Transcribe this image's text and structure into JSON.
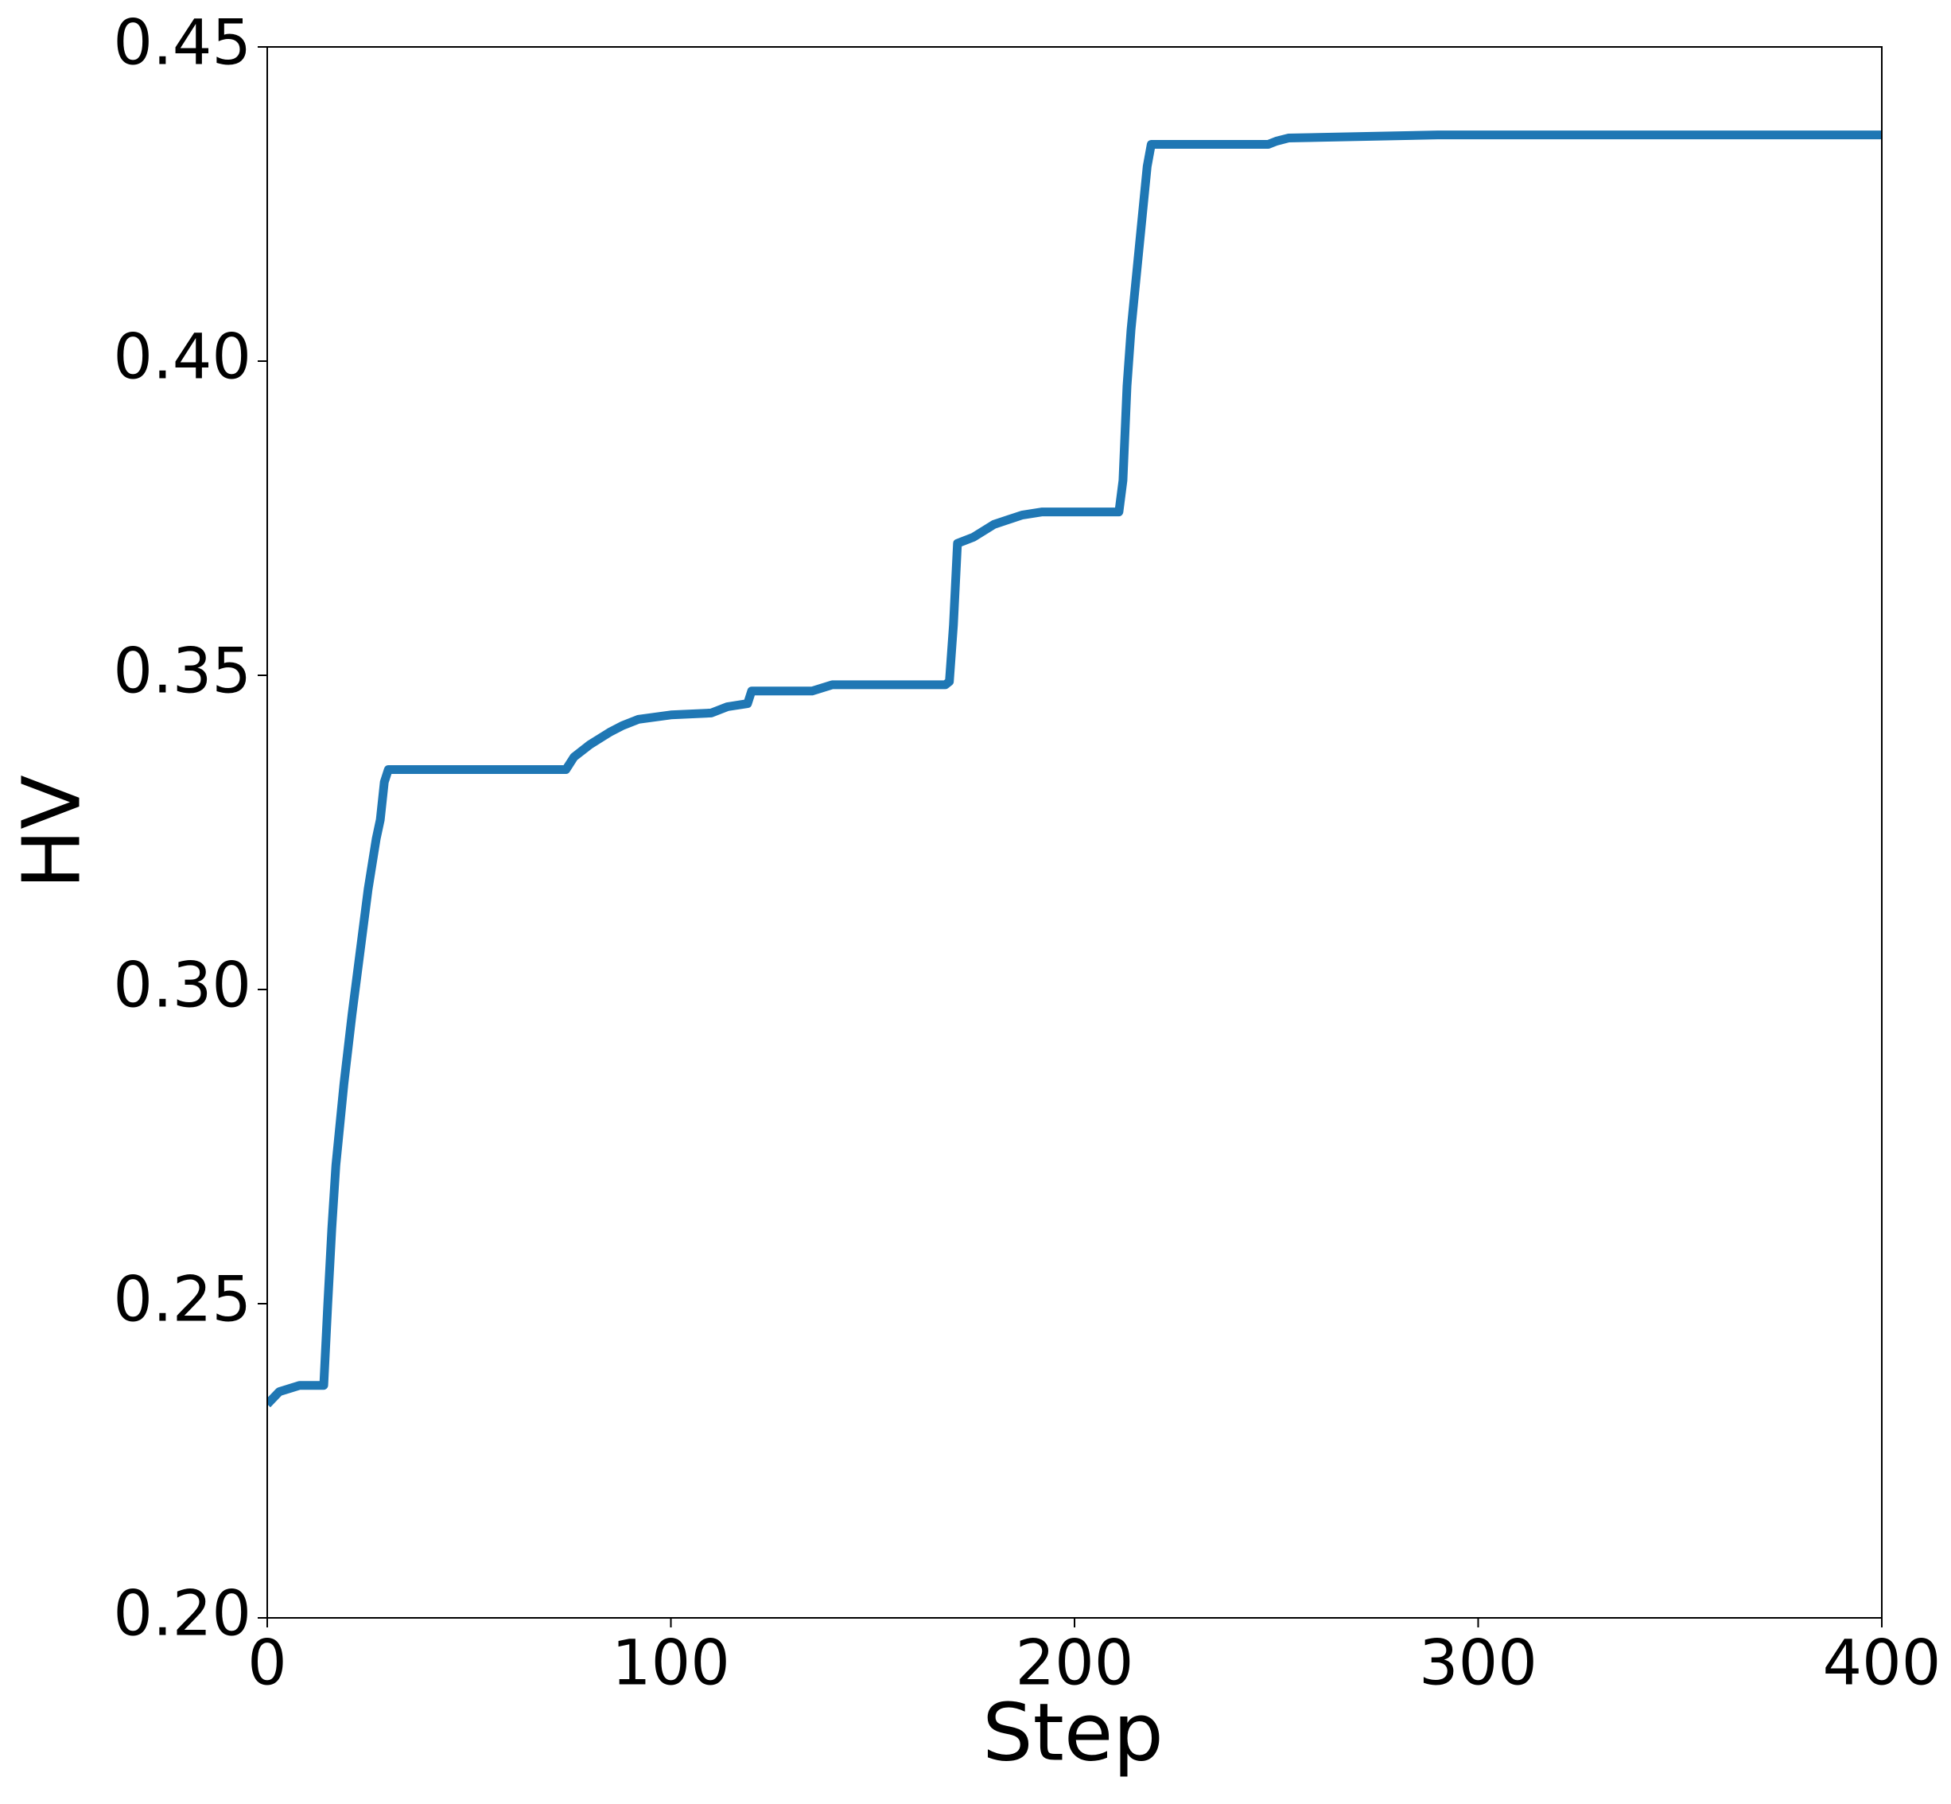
{
  "chart_data": {
    "type": "line",
    "x_label": "Step",
    "y_label": "HV",
    "x": [
      0,
      3,
      8,
      14,
      15,
      16,
      17,
      19,
      21,
      23,
      25,
      27,
      28,
      29,
      30,
      74,
      76,
      80,
      85,
      88,
      92,
      100,
      110,
      114,
      119,
      120,
      135,
      140,
      168,
      169,
      170,
      171,
      175,
      180,
      187,
      192,
      211,
      212,
      213,
      214,
      216,
      218,
      219,
      248,
      250,
      253,
      290,
      400
    ],
    "series": [
      {
        "color": "#1f77b4",
        "values": [
          0.234,
          0.236,
          0.237,
          0.237,
          0.25,
          0.262,
          0.272,
          0.285,
          0.296,
          0.306,
          0.316,
          0.324,
          0.327,
          0.333,
          0.335,
          0.335,
          0.337,
          0.339,
          0.341,
          0.342,
          0.343,
          0.3437,
          0.344,
          0.345,
          0.3455,
          0.3475,
          0.3475,
          0.3485,
          0.3485,
          0.349,
          0.358,
          0.371,
          0.372,
          0.374,
          0.3755,
          0.376,
          0.376,
          0.381,
          0.396,
          0.405,
          0.418,
          0.431,
          0.4345,
          0.4345,
          0.435,
          0.4355,
          0.436,
          0.436
        ]
      }
    ],
    "xlim": [
      0,
      400
    ],
    "ylim": [
      0.2,
      0.45
    ],
    "xticks": [
      0,
      100,
      200,
      300,
      400
    ],
    "yticks": [
      {
        "value": 0.2,
        "label": "0.20"
      },
      0.25,
      {
        "value": 0.3,
        "label": "0.30"
      },
      0.35,
      {
        "value": 0.4,
        "label": "0.40"
      },
      0.45
    ],
    "grid": false
  }
}
